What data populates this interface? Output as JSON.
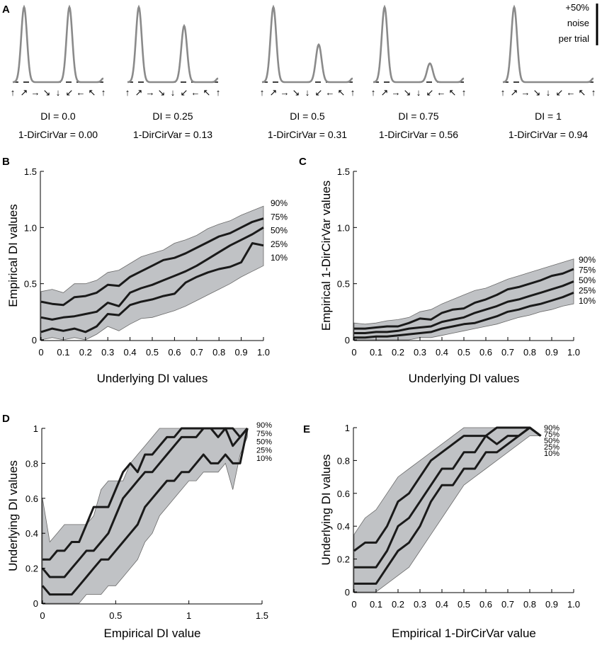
{
  "chart_data": [
    {
      "panel": "A",
      "type": "line",
      "title": "",
      "scale_bar": {
        "line1": "+50%",
        "line2": "noise",
        "line3": "per trial"
      },
      "direction_arrows": [
        "↑",
        "↗",
        "→",
        "↘",
        "↓",
        "↙",
        "←",
        "↖",
        "↑"
      ],
      "tuning_curves": [
        {
          "di_label": "DI = 0.0",
          "dcv_label": "1-DirCirVar = 0.00",
          "peak1": 1.0,
          "peak2": 1.0
        },
        {
          "di_label": "DI = 0.25",
          "dcv_label": "1-DirCirVar = 0.13",
          "peak1": 1.0,
          "peak2": 0.75
        },
        {
          "di_label": "DI = 0.5",
          "dcv_label": "1-DirCirVar = 0.31",
          "peak1": 1.0,
          "peak2": 0.5
        },
        {
          "di_label": "DI = 0.75",
          "dcv_label": "1-DirCirVar = 0.56",
          "peak1": 1.0,
          "peak2": 0.25
        },
        {
          "di_label": "DI = 1",
          "dcv_label": "1-DirCirVar = 0.94",
          "peak1": 1.0,
          "peak2": 0.0
        }
      ]
    },
    {
      "panel": "B",
      "type": "line",
      "xlabel": "Underlying DI values",
      "ylabel": "Empirical DI values",
      "xlim": [
        0,
        1.0
      ],
      "ylim": [
        0,
        1.5
      ],
      "xticks": [
        "0",
        "0.1",
        "0.2",
        "0.3",
        "0.4",
        "0.5",
        "0.6",
        "0.7",
        "0.8",
        "0.9",
        "1.0"
      ],
      "yticks": [
        "0",
        "0.5",
        "1.0",
        "1.5"
      ],
      "x": [
        0,
        0.05,
        0.1,
        0.15,
        0.2,
        0.25,
        0.3,
        0.35,
        0.4,
        0.45,
        0.5,
        0.55,
        0.6,
        0.65,
        0.7,
        0.75,
        0.8,
        0.85,
        0.9,
        0.95,
        1.0
      ],
      "band": {
        "upper": [
          0.43,
          0.45,
          0.42,
          0.5,
          0.5,
          0.53,
          0.6,
          0.62,
          0.68,
          0.74,
          0.77,
          0.8,
          0.86,
          0.89,
          0.93,
          0.99,
          1.03,
          1.06,
          1.11,
          1.15,
          1.19
        ],
        "lower": [
          0.0,
          0.02,
          0.0,
          0.02,
          0.0,
          0.05,
          0.12,
          0.08,
          0.14,
          0.19,
          0.2,
          0.23,
          0.26,
          0.3,
          0.35,
          0.4,
          0.45,
          0.5,
          0.56,
          0.61,
          0.66
        ]
      },
      "series": [
        {
          "name": "75%",
          "values": [
            0.34,
            0.32,
            0.31,
            0.38,
            0.39,
            0.42,
            0.49,
            0.48,
            0.56,
            0.61,
            0.66,
            0.71,
            0.73,
            0.77,
            0.82,
            0.87,
            0.92,
            0.95,
            1.0,
            1.05,
            1.08
          ]
        },
        {
          "name": "50%",
          "values": [
            0.2,
            0.18,
            0.2,
            0.21,
            0.23,
            0.25,
            0.33,
            0.3,
            0.42,
            0.46,
            0.49,
            0.53,
            0.57,
            0.61,
            0.66,
            0.72,
            0.78,
            0.84,
            0.89,
            0.94,
            1.0
          ]
        },
        {
          "name": "25%",
          "values": [
            0.07,
            0.1,
            0.08,
            0.1,
            0.07,
            0.12,
            0.23,
            0.22,
            0.31,
            0.34,
            0.36,
            0.39,
            0.41,
            0.51,
            0.56,
            0.6,
            0.63,
            0.65,
            0.69,
            0.86,
            0.84
          ]
        }
      ],
      "percentile_labels": [
        "90%",
        "75%",
        "50%",
        "25%",
        "10%"
      ]
    },
    {
      "panel": "C",
      "type": "line",
      "xlabel": "Underlying DI values",
      "ylabel": "Empirical 1-DirCirVar values",
      "xlim": [
        0,
        1.0
      ],
      "ylim": [
        0,
        1.5
      ],
      "xticks": [
        "0",
        "0.1",
        "0.2",
        "0.3",
        "0.4",
        "0.5",
        "0.6",
        "0.7",
        "0.8",
        "0.9",
        "1.0"
      ],
      "yticks": [
        "0",
        "0.5",
        "1.0",
        "1.5"
      ],
      "x": [
        0,
        0.05,
        0.1,
        0.15,
        0.2,
        0.25,
        0.3,
        0.35,
        0.4,
        0.45,
        0.5,
        0.55,
        0.6,
        0.65,
        0.7,
        0.75,
        0.8,
        0.85,
        0.9,
        0.95,
        1.0
      ],
      "band": {
        "upper": [
          0.15,
          0.14,
          0.15,
          0.17,
          0.18,
          0.2,
          0.25,
          0.27,
          0.32,
          0.36,
          0.4,
          0.44,
          0.46,
          0.5,
          0.54,
          0.57,
          0.6,
          0.63,
          0.66,
          0.69,
          0.72
        ],
        "lower": [
          0.0,
          0.0,
          0.0,
          0.0,
          0.0,
          0.0,
          0.02,
          0.02,
          0.04,
          0.06,
          0.08,
          0.1,
          0.12,
          0.14,
          0.17,
          0.2,
          0.22,
          0.25,
          0.27,
          0.3,
          0.32
        ]
      },
      "series": [
        {
          "name": "75%",
          "values": [
            0.1,
            0.1,
            0.11,
            0.12,
            0.12,
            0.15,
            0.19,
            0.18,
            0.24,
            0.27,
            0.28,
            0.33,
            0.36,
            0.4,
            0.45,
            0.47,
            0.5,
            0.53,
            0.57,
            0.59,
            0.63
          ]
        },
        {
          "name": "50%",
          "values": [
            0.06,
            0.06,
            0.07,
            0.07,
            0.08,
            0.1,
            0.11,
            0.12,
            0.16,
            0.18,
            0.2,
            0.24,
            0.27,
            0.3,
            0.34,
            0.36,
            0.39,
            0.42,
            0.45,
            0.48,
            0.52
          ]
        },
        {
          "name": "25%",
          "values": [
            0.02,
            0.02,
            0.03,
            0.03,
            0.04,
            0.05,
            0.06,
            0.07,
            0.1,
            0.12,
            0.14,
            0.15,
            0.18,
            0.21,
            0.25,
            0.27,
            0.3,
            0.32,
            0.35,
            0.38,
            0.42
          ]
        }
      ],
      "percentile_labels": [
        "90%",
        "75%",
        "50%",
        "25%",
        "10%"
      ]
    },
    {
      "panel": "D",
      "type": "line",
      "xlabel": "Empirical DI value",
      "ylabel": "Underlying DI values",
      "xlim": [
        0,
        1.5
      ],
      "ylim": [
        0,
        1.0
      ],
      "xticks": [
        "0",
        "0.5",
        "1",
        "1.5"
      ],
      "yticks": [
        "0",
        "0.2",
        "0.4",
        "0.6",
        "0.8",
        "1"
      ],
      "x": [
        0,
        0.05,
        0.1,
        0.15,
        0.2,
        0.25,
        0.3,
        0.35,
        0.4,
        0.45,
        0.5,
        0.55,
        0.6,
        0.65,
        0.7,
        0.75,
        0.8,
        0.85,
        0.9,
        0.95,
        1.0,
        1.05,
        1.1,
        1.15,
        1.2,
        1.25,
        1.3,
        1.35,
        1.4
      ],
      "band": {
        "upper": [
          0.6,
          0.35,
          0.4,
          0.45,
          0.45,
          0.45,
          0.45,
          0.5,
          0.65,
          0.7,
          0.7,
          0.7,
          0.8,
          0.85,
          0.9,
          0.95,
          1.0,
          1.0,
          1.0,
          1.0,
          1.0,
          1.0,
          1.0,
          1.0,
          1.0,
          1.0,
          1.0,
          1.0,
          1.0
        ],
        "lower": [
          0.0,
          0.0,
          0.0,
          0.0,
          0.0,
          0.0,
          0.05,
          0.05,
          0.05,
          0.1,
          0.1,
          0.15,
          0.2,
          0.25,
          0.35,
          0.4,
          0.5,
          0.55,
          0.6,
          0.65,
          0.7,
          0.7,
          0.75,
          0.75,
          0.75,
          0.8,
          0.65,
          0.85,
          0.95
        ]
      },
      "series": [
        {
          "name": "75%",
          "values": [
            0.25,
            0.25,
            0.3,
            0.3,
            0.35,
            0.35,
            0.45,
            0.55,
            0.55,
            0.55,
            0.65,
            0.75,
            0.8,
            0.75,
            0.85,
            0.85,
            0.9,
            0.95,
            0.95,
            1.0,
            1.0,
            1.0,
            1.0,
            1.0,
            1.0,
            1.0,
            1.0,
            0.95,
            1.0
          ]
        },
        {
          "name": "50%",
          "values": [
            0.2,
            0.15,
            0.15,
            0.15,
            0.2,
            0.25,
            0.3,
            0.3,
            0.35,
            0.4,
            0.5,
            0.6,
            0.65,
            0.7,
            0.75,
            0.75,
            0.8,
            0.85,
            0.9,
            0.95,
            0.95,
            0.95,
            1.0,
            1.0,
            0.95,
            1.0,
            0.9,
            0.95,
            1.0
          ]
        },
        {
          "name": "25%",
          "values": [
            0.1,
            0.05,
            0.05,
            0.05,
            0.05,
            0.1,
            0.15,
            0.2,
            0.25,
            0.25,
            0.3,
            0.35,
            0.4,
            0.45,
            0.55,
            0.6,
            0.65,
            0.7,
            0.7,
            0.75,
            0.75,
            0.8,
            0.85,
            0.8,
            0.8,
            0.85,
            0.8,
            0.8,
            1.0
          ]
        }
      ],
      "percentile_labels": [
        "90%",
        "75%",
        "50%",
        "25%",
        "10%"
      ]
    },
    {
      "panel": "E",
      "type": "line",
      "xlabel": "Empirical 1-DirCirVar value",
      "ylabel": "Underlying DI values",
      "xlim": [
        0,
        1.0
      ],
      "ylim": [
        0,
        1.0
      ],
      "xticks": [
        "0",
        "0.1",
        "0.2",
        "0.3",
        "0.4",
        "0.5",
        "0.6",
        "0.7",
        "0.8",
        "0.9",
        "1.0"
      ],
      "yticks": [
        "0",
        "0.2",
        "0.4",
        "0.6",
        "0.8",
        "1"
      ],
      "x": [
        0,
        0.05,
        0.1,
        0.15,
        0.2,
        0.25,
        0.3,
        0.35,
        0.4,
        0.45,
        0.5,
        0.55,
        0.6,
        0.65,
        0.7,
        0.75,
        0.8,
        0.85
      ],
      "band": {
        "upper": [
          0.35,
          0.45,
          0.5,
          0.6,
          0.7,
          0.75,
          0.8,
          0.85,
          0.9,
          0.95,
          1.0,
          1.0,
          1.0,
          1.0,
          1.0,
          1.0,
          1.0,
          0.95
        ],
        "lower": [
          0.0,
          0.0,
          0.0,
          0.05,
          0.1,
          0.15,
          0.25,
          0.35,
          0.45,
          0.55,
          0.65,
          0.7,
          0.75,
          0.8,
          0.85,
          0.9,
          0.95,
          0.95
        ]
      },
      "series": [
        {
          "name": "75%",
          "values": [
            0.25,
            0.3,
            0.3,
            0.4,
            0.55,
            0.6,
            0.7,
            0.8,
            0.85,
            0.9,
            0.95,
            0.95,
            0.95,
            1.0,
            1.0,
            1.0,
            1.0,
            0.95
          ]
        },
        {
          "name": "50%",
          "values": [
            0.15,
            0.15,
            0.15,
            0.25,
            0.4,
            0.45,
            0.55,
            0.65,
            0.75,
            0.75,
            0.85,
            0.85,
            0.95,
            0.9,
            0.95,
            0.95,
            1.0,
            0.95
          ]
        },
        {
          "name": "25%",
          "values": [
            0.05,
            0.05,
            0.05,
            0.15,
            0.25,
            0.3,
            0.4,
            0.55,
            0.65,
            0.65,
            0.75,
            0.75,
            0.85,
            0.85,
            0.9,
            0.95,
            1.0,
            0.95
          ]
        }
      ],
      "percentile_labels": [
        "90%",
        "75%",
        "50%",
        "25%",
        "10%"
      ]
    }
  ],
  "colors": {
    "band": "#c0c2c5",
    "line": "#1a1a1a",
    "curve": "#8a8a8a"
  }
}
